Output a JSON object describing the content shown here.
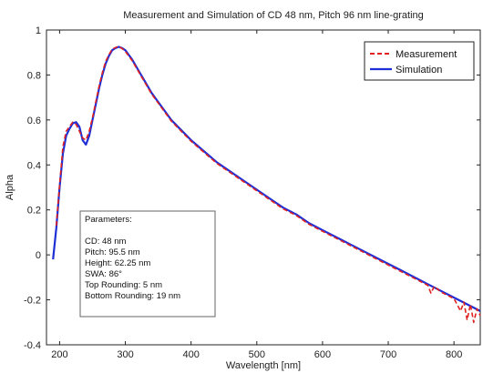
{
  "chart_data": {
    "type": "line",
    "title": "Measurement and Simulation of CD 48 nm, Pitch 96 nm line-grating",
    "xlabel": "Wavelength [nm]",
    "ylabel": "Alpha",
    "xlim": [
      180,
      840
    ],
    "ylim": [
      -0.4,
      1.0
    ],
    "xticks": [
      200,
      300,
      400,
      500,
      600,
      700,
      800
    ],
    "yticks": [
      -0.4,
      -0.2,
      0,
      0.2,
      0.4,
      0.6,
      0.8,
      1
    ],
    "ytick_labels": [
      "-0.4",
      "-0.2",
      "0",
      "0.2",
      "0.4",
      "0.6",
      "0.8",
      "1"
    ],
    "grid": false,
    "legend_position": "top-right",
    "series": [
      {
        "name": "Simulation",
        "color": "#1f2fd6",
        "style": "solid",
        "x": [
          190,
          195,
          200,
          205,
          210,
          215,
          220,
          225,
          230,
          235,
          240,
          245,
          250,
          255,
          260,
          265,
          270,
          275,
          280,
          285,
          290,
          295,
          300,
          310,
          320,
          330,
          340,
          350,
          360,
          370,
          380,
          390,
          400,
          420,
          440,
          460,
          480,
          500,
          520,
          540,
          560,
          580,
          600,
          620,
          640,
          660,
          680,
          700,
          720,
          740,
          760,
          780,
          800,
          820,
          840
        ],
        "y": [
          -0.02,
          0.12,
          0.3,
          0.45,
          0.53,
          0.56,
          0.585,
          0.59,
          0.57,
          0.51,
          0.49,
          0.53,
          0.6,
          0.67,
          0.74,
          0.8,
          0.85,
          0.885,
          0.91,
          0.92,
          0.925,
          0.92,
          0.91,
          0.87,
          0.82,
          0.77,
          0.72,
          0.68,
          0.64,
          0.6,
          0.57,
          0.54,
          0.51,
          0.46,
          0.41,
          0.37,
          0.33,
          0.29,
          0.25,
          0.21,
          0.18,
          0.14,
          0.11,
          0.08,
          0.05,
          0.02,
          -0.01,
          -0.04,
          -0.07,
          -0.1,
          -0.13,
          -0.16,
          -0.19,
          -0.22,
          -0.25
        ]
      },
      {
        "name": "Measurement",
        "color": "#e02020",
        "style": "dashed",
        "x": [
          195,
          200,
          205,
          210,
          215,
          220,
          225,
          230,
          235,
          240,
          245,
          250,
          255,
          260,
          265,
          270,
          275,
          280,
          285,
          290,
          295,
          300,
          310,
          320,
          330,
          340,
          350,
          360,
          370,
          380,
          390,
          400,
          420,
          440,
          460,
          480,
          500,
          520,
          540,
          560,
          580,
          600,
          620,
          640,
          660,
          680,
          700,
          720,
          740,
          760,
          765,
          770,
          780,
          800,
          810,
          815,
          820,
          825,
          830,
          835,
          840
        ],
        "y": [
          0.13,
          0.31,
          0.48,
          0.55,
          0.57,
          0.59,
          0.58,
          0.55,
          0.52,
          0.51,
          0.55,
          0.61,
          0.68,
          0.75,
          0.81,
          0.86,
          0.89,
          0.915,
          0.922,
          0.927,
          0.918,
          0.905,
          0.865,
          0.815,
          0.765,
          0.715,
          0.675,
          0.635,
          0.595,
          0.565,
          0.535,
          0.505,
          0.455,
          0.405,
          0.365,
          0.325,
          0.285,
          0.245,
          0.205,
          0.175,
          0.135,
          0.105,
          0.075,
          0.045,
          0.015,
          -0.015,
          -0.045,
          -0.075,
          -0.105,
          -0.135,
          -0.17,
          -0.14,
          -0.165,
          -0.195,
          -0.25,
          -0.21,
          -0.29,
          -0.22,
          -0.3,
          -0.24,
          -0.27
        ]
      }
    ],
    "annotation": {
      "heading": "Parameters:",
      "lines": [
        "CD: 48 nm",
        "Pitch: 95.5 nm",
        "Height: 62.25 nm",
        "SWA: 86°",
        "Top Rounding: 5 nm",
        "Bottom Rounding: 19 nm"
      ]
    }
  }
}
